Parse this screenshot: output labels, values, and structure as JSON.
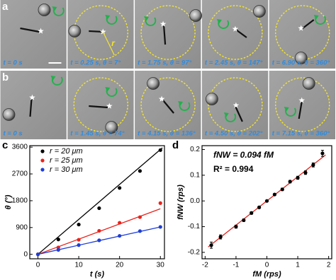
{
  "panels": {
    "a": {
      "label": "a",
      "r_label": "r",
      "captions": [
        "t = 0 s",
        "t = 0.25 s, θ = 7°",
        "t = 1.75 s, θ = 97°",
        "t = 2.45 s, θ = 147°",
        "t = 6.90 s, θ = 360°"
      ]
    },
    "b": {
      "label": "b",
      "captions": [
        "t = 0 s",
        "t = 1.45 s, θ = 74°",
        "t = 4.15 s, θ = 136°",
        "t = 4.50 s, θ = 202°",
        "t = 7.15 s, θ = 360°"
      ]
    },
    "c": {
      "label": "c"
    },
    "d": {
      "label": "d"
    }
  },
  "chart_data": [
    {
      "type": "scatter",
      "xlabel": "t (s)",
      "ylabel": "θ (°)",
      "xlim": [
        -2,
        31
      ],
      "ylim": [
        -150,
        3650
      ],
      "xticks": [
        0,
        10,
        20,
        30
      ],
      "yticks": [
        0,
        900,
        1800,
        2700,
        3600
      ],
      "legend": "upper left",
      "x": [
        0,
        5,
        10,
        15,
        20,
        25,
        30
      ],
      "series": [
        {
          "name": "r = 20 μm",
          "color": "#000000",
          "values": [
            0,
            500,
            1000,
            1550,
            2230,
            2800,
            3500
          ],
          "fit_x": [
            0,
            30.5
          ],
          "fit": [
            0,
            3580
          ]
        },
        {
          "name": "r = 25 μm",
          "color": "#e8231c",
          "values": [
            0,
            230,
            490,
            790,
            1060,
            1250,
            1720
          ],
          "fit_x": [
            0,
            30
          ],
          "fit": [
            0,
            1530
          ]
        },
        {
          "name": "r = 30 μm",
          "color": "#1f3fd6",
          "values": [
            0,
            150,
            310,
            470,
            620,
            780,
            920
          ],
          "fit_x": [
            0,
            30
          ],
          "fit": [
            0,
            920
          ]
        }
      ]
    },
    {
      "type": "scatter",
      "xlabel": "fM (rps)",
      "ylabel": "fNW (rps)",
      "xlim": [
        -2.1,
        2.1
      ],
      "ylim": [
        -0.225,
        0.215
      ],
      "xticks": [
        -2,
        -1,
        0,
        1,
        2
      ],
      "yticks": [
        -0.2,
        -0.1,
        {
          "value": 0,
          "label": "0.0"
        },
        0.1,
        0.2
      ],
      "annotations": [
        "fNW = 0.094 fM",
        "R² = 0.994"
      ],
      "x": [
        -1.8,
        -1.5,
        -1,
        -0.75,
        -0.5,
        -0.25,
        0,
        0.25,
        0.5,
        0.75,
        1,
        1.25,
        1.5,
        1.8
      ],
      "series": [
        {
          "color": "#000000",
          "fit_color": "#e0201b",
          "values": [
            -0.172,
            -0.14,
            -0.1,
            -0.075,
            -0.047,
            -0.025,
            0,
            0.025,
            0.045,
            0.075,
            0.09,
            0.11,
            0.14,
            0.185
          ],
          "errors": [
            0.012,
            0.008,
            0.006,
            0.005,
            0.005,
            0.004,
            0.003,
            0.004,
            0.005,
            0.005,
            0.006,
            0.007,
            0.008,
            0.012
          ],
          "fit_x": [
            -1.9,
            1.9
          ],
          "fit": [
            -0.179,
            0.179
          ]
        }
      ]
    }
  ]
}
